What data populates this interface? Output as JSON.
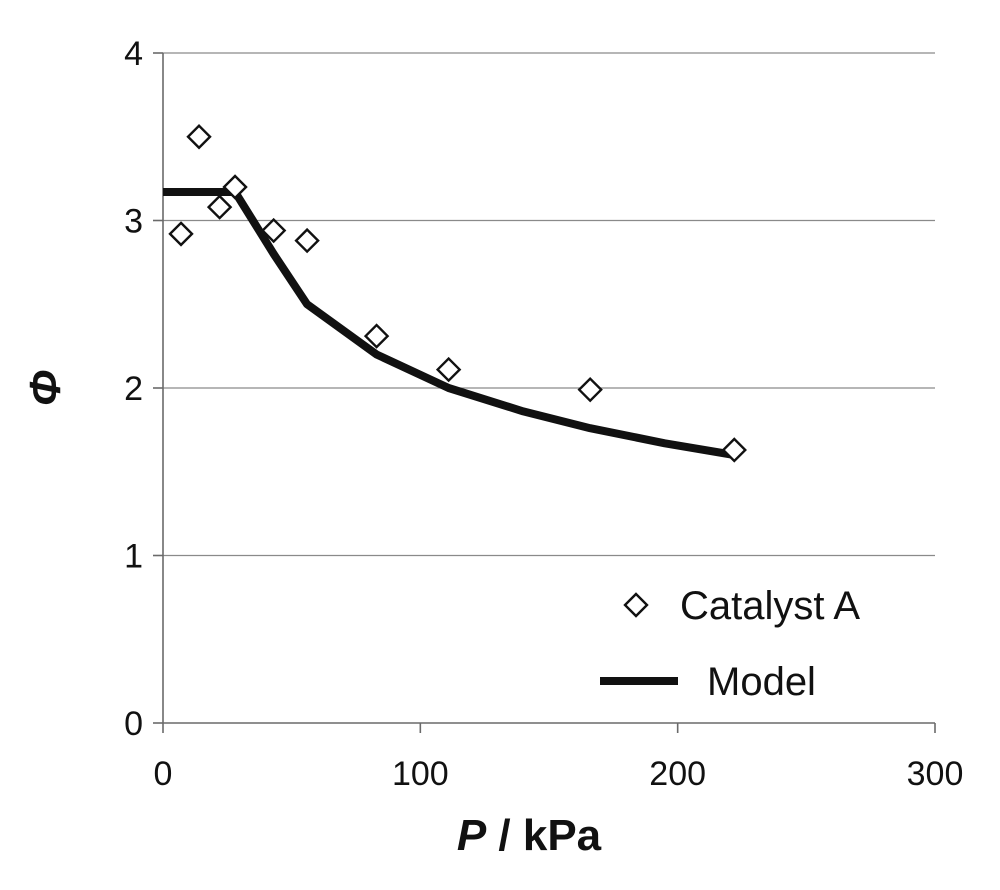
{
  "chart_data": {
    "type": "scatter",
    "title": "",
    "xlabel": {
      "symbol": "P",
      "rest": " / kPa"
    },
    "ylabel": "Φ",
    "xlim": [
      0,
      300
    ],
    "ylim": [
      0,
      4
    ],
    "xticks": [
      0,
      100,
      200,
      300
    ],
    "yticks": [
      0,
      1,
      2,
      3,
      4
    ],
    "x_tick_labels": [
      "0",
      "100",
      "200",
      "300"
    ],
    "y_tick_labels": [
      "0",
      "1",
      "2",
      "3",
      "4"
    ],
    "grid": "horizontal",
    "legend_position": "bottom-right",
    "series": [
      {
        "name": "Catalyst A",
        "kind": "markers",
        "marker": "open-diamond",
        "color": "#111111",
        "x": [
          7,
          14,
          22,
          28,
          43,
          56,
          83,
          111,
          166,
          222
        ],
        "y": [
          2.92,
          3.5,
          3.08,
          3.2,
          2.94,
          2.88,
          2.31,
          2.11,
          1.99,
          1.63
        ]
      },
      {
        "name": "Model",
        "kind": "line",
        "color": "#111111",
        "x": [
          0,
          28,
          43,
          56,
          83,
          111,
          140,
          166,
          195,
          222
        ],
        "y": [
          3.17,
          3.17,
          2.8,
          2.5,
          2.2,
          2.0,
          1.86,
          1.76,
          1.67,
          1.6
        ]
      }
    ]
  }
}
